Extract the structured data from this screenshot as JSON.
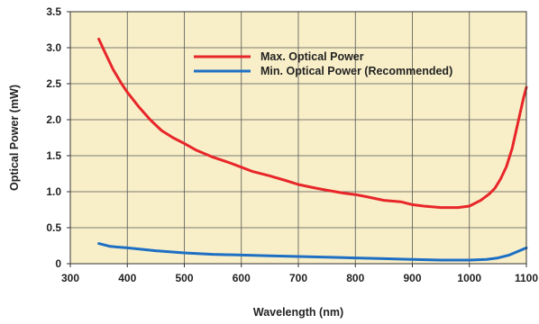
{
  "chart_data": {
    "type": "line",
    "title": "",
    "xlabel": "Wavelength (nm)",
    "ylabel": "Optical Power (mW)",
    "xlim": [
      300,
      1100
    ],
    "ylim": [
      0,
      3.5
    ],
    "xticks": [
      "300",
      "400",
      "500",
      "600",
      "700",
      "800",
      "900",
      "1000",
      "1100"
    ],
    "yticks": [
      "0",
      "0.5",
      "1.0",
      "1.5",
      "2.0",
      "2.5",
      "3.0",
      "3.5"
    ],
    "grid": true,
    "legend_position": "top-center",
    "background_color": "#f8efc8",
    "series": [
      {
        "name": "Max. Optical Power",
        "color": "#e8262a",
        "x": [
          350,
          360,
          375,
          390,
          400,
          420,
          440,
          460,
          480,
          500,
          520,
          550,
          580,
          600,
          620,
          650,
          680,
          700,
          730,
          750,
          780,
          800,
          820,
          850,
          880,
          900,
          920,
          950,
          980,
          1000,
          1020,
          1035,
          1045,
          1055,
          1065,
          1075,
          1085,
          1095,
          1100
        ],
        "y": [
          3.12,
          2.95,
          2.7,
          2.5,
          2.38,
          2.18,
          2.0,
          1.85,
          1.75,
          1.67,
          1.58,
          1.48,
          1.4,
          1.34,
          1.28,
          1.22,
          1.15,
          1.1,
          1.05,
          1.02,
          0.98,
          0.96,
          0.93,
          0.88,
          0.86,
          0.82,
          0.8,
          0.78,
          0.78,
          0.8,
          0.88,
          0.97,
          1.05,
          1.18,
          1.35,
          1.6,
          1.95,
          2.3,
          2.45
        ]
      },
      {
        "name": "Min. Optical Power (Recommended)",
        "color": "#1e6fc4",
        "x": [
          350,
          370,
          400,
          450,
          500,
          550,
          600,
          650,
          700,
          750,
          800,
          850,
          900,
          950,
          1000,
          1030,
          1050,
          1070,
          1085,
          1100
        ],
        "y": [
          0.28,
          0.24,
          0.22,
          0.18,
          0.15,
          0.13,
          0.12,
          0.11,
          0.1,
          0.09,
          0.08,
          0.07,
          0.06,
          0.05,
          0.05,
          0.06,
          0.08,
          0.12,
          0.17,
          0.22
        ]
      }
    ]
  }
}
